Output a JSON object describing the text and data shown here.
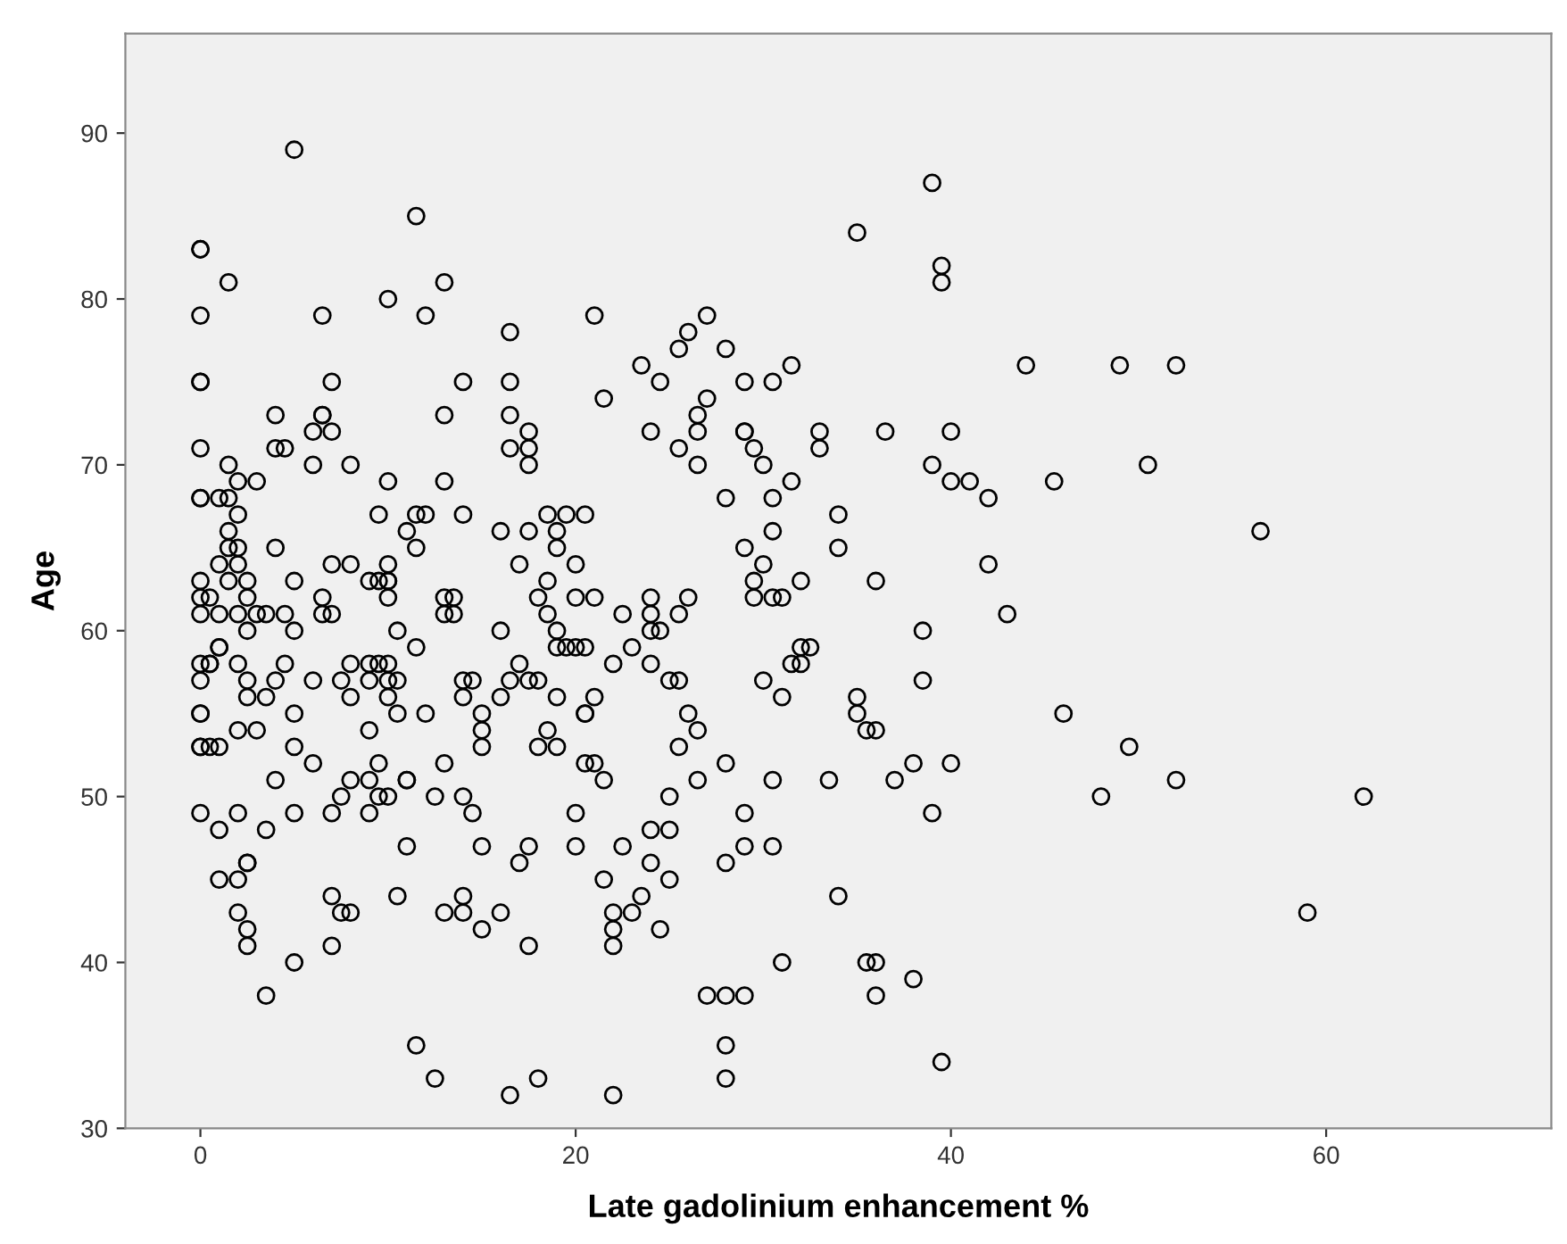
{
  "chart_data": {
    "type": "scatter",
    "xlabel": "Late gadolinium enhancement %",
    "ylabel": "Age",
    "xlim": [
      -4,
      72
    ],
    "ylim": [
      30,
      96
    ],
    "xticks": [
      0,
      20,
      40,
      60
    ],
    "yticks": [
      30,
      40,
      50,
      60,
      70,
      80,
      90
    ],
    "grid": false,
    "marker": "circle",
    "series": [
      {
        "color": "#000000",
        "x": [
          0,
          0,
          0,
          0,
          0,
          0,
          0,
          0,
          0,
          0,
          0,
          0,
          0,
          0,
          0,
          0,
          0,
          0,
          0.5,
          0.5,
          0.5,
          0.5,
          1,
          1,
          1,
          1,
          1,
          1,
          1,
          1,
          1.5,
          1.5,
          1.5,
          1.5,
          1.5,
          1.5,
          2,
          2,
          2,
          2,
          2,
          2,
          2,
          2,
          2,
          2,
          2.5,
          2.5,
          2.5,
          2.5,
          2.5,
          2.5,
          2.5,
          2.5,
          2.5,
          3,
          3,
          3,
          3.5,
          3.5,
          3.5,
          3.5,
          4,
          4,
          4,
          4,
          4,
          4.5,
          4.5,
          4.5,
          5,
          5,
          5,
          5,
          5,
          5,
          5,
          6,
          6,
          6,
          6,
          6.5,
          6.5,
          6.5,
          6.5,
          6.5,
          7,
          7,
          7,
          7,
          7,
          7,
          7,
          7.5,
          7.5,
          7.5,
          8,
          8,
          8,
          8,
          8,
          8,
          9,
          9,
          9,
          9,
          9,
          9,
          9.5,
          9.5,
          9.5,
          9.5,
          9.5,
          10,
          10,
          10,
          10,
          10,
          10,
          10,
          10,
          10,
          10,
          10.5,
          10.5,
          10.5,
          10.5,
          11,
          11,
          11,
          11,
          11.5,
          11.5,
          11.5,
          11.5,
          11.5,
          12,
          12,
          12,
          12.5,
          12.5,
          13,
          13,
          13,
          13,
          13,
          13,
          13,
          13.5,
          13.5,
          14,
          14,
          14,
          14,
          14,
          14,
          14,
          14.5,
          14.5,
          15,
          15,
          15,
          15,
          15,
          16,
          16,
          16,
          16,
          16.5,
          16.5,
          16.5,
          16.5,
          16.5,
          16.5,
          17,
          17,
          17,
          17.5,
          17.5,
          17.5,
          17.5,
          17.5,
          17.5,
          17.5,
          18,
          18,
          18,
          18,
          18.5,
          18.5,
          18.5,
          18.5,
          19,
          19,
          19,
          19,
          19,
          19,
          19.5,
          19.5,
          20,
          20,
          20,
          20,
          20,
          20.5,
          20.5,
          20.5,
          20.5,
          20.5,
          21,
          21,
          21,
          21,
          21.5,
          21.5,
          21.5,
          22,
          22,
          22,
          22,
          22,
          22.5,
          22.5,
          23,
          23,
          23.5,
          23.5,
          24,
          24,
          24,
          24,
          24,
          24,
          24,
          24.5,
          24.5,
          24.5,
          25,
          25,
          25,
          25,
          25.5,
          25.5,
          25.5,
          25.5,
          25.5,
          26,
          26,
          26,
          26.5,
          26.5,
          26.5,
          26.5,
          26.5,
          27,
          27,
          27,
          28,
          28,
          28,
          28,
          28,
          28,
          28,
          29,
          29,
          29,
          29,
          29,
          29,
          29,
          29.5,
          29.5,
          29.5,
          30,
          30,
          30,
          30.5,
          30.5,
          30.5,
          30.5,
          30.5,
          30.5,
          31,
          31,
          31,
          31.5,
          31.5,
          31.5,
          32,
          32,
          32,
          32.5,
          33,
          33,
          33.5,
          34,
          34,
          34,
          35,
          35,
          35,
          35.5,
          35.5,
          36,
          36,
          36,
          36,
          36.5,
          37,
          38,
          38,
          38.5,
          38.5,
          39,
          39,
          39,
          39.5,
          39.5,
          39.5,
          40,
          40,
          40,
          41,
          42,
          42,
          43,
          44,
          45.5,
          46,
          48,
          49,
          49.5,
          50.5,
          52,
          52,
          56.5,
          59,
          62
        ],
        "values": [
          83,
          83,
          79,
          75,
          75,
          71,
          68,
          68,
          63,
          62,
          61,
          58,
          57,
          55,
          55,
          53,
          53,
          49,
          62,
          58,
          53,
          58,
          68,
          64,
          61,
          59,
          59,
          53,
          48,
          45,
          81,
          70,
          68,
          66,
          65,
          63,
          69,
          67,
          65,
          64,
          61,
          58,
          54,
          49,
          45,
          43,
          63,
          62,
          60,
          57,
          56,
          46,
          46,
          42,
          41,
          69,
          61,
          54,
          61,
          56,
          48,
          38,
          73,
          71,
          65,
          57,
          51,
          71,
          61,
          58,
          89,
          63,
          60,
          55,
          53,
          49,
          40,
          72,
          70,
          57,
          52,
          79,
          73,
          73,
          62,
          61,
          75,
          72,
          64,
          61,
          49,
          44,
          41,
          57,
          50,
          43,
          70,
          64,
          58,
          56,
          51,
          43,
          63,
          58,
          57,
          49,
          51,
          54,
          67,
          63,
          58,
          50,
          52,
          80,
          69,
          64,
          63,
          63,
          62,
          58,
          57,
          56,
          50,
          60,
          57,
          55,
          44,
          66,
          51,
          47,
          51,
          85,
          67,
          65,
          59,
          35,
          79,
          67,
          55,
          50,
          33,
          81,
          73,
          69,
          62,
          61,
          52,
          43,
          62,
          61,
          75,
          67,
          57,
          56,
          50,
          43,
          44,
          49,
          57,
          55,
          54,
          53,
          47,
          42,
          66,
          60,
          56,
          43,
          78,
          75,
          73,
          71,
          57,
          32,
          64,
          58,
          46,
          72,
          71,
          70,
          66,
          57,
          47,
          41,
          62,
          57,
          53,
          33,
          67,
          63,
          61,
          54,
          66,
          65,
          60,
          59,
          56,
          53,
          67,
          59,
          64,
          62,
          59,
          49,
          47,
          67,
          59,
          55,
          55,
          52,
          79,
          62,
          56,
          52,
          74,
          51,
          45,
          58,
          43,
          42,
          41,
          32,
          61,
          47,
          59,
          43,
          76,
          44,
          72,
          62,
          61,
          60,
          58,
          48,
          46,
          75,
          60,
          42,
          57,
          50,
          48,
          45,
          77,
          71,
          61,
          57,
          53,
          78,
          62,
          55,
          73,
          72,
          70,
          54,
          51,
          79,
          74,
          38,
          77,
          68,
          52,
          46,
          38,
          35,
          33,
          72,
          72,
          75,
          65,
          49,
          47,
          38,
          71,
          63,
          62,
          70,
          64,
          57,
          75,
          68,
          66,
          62,
          51,
          47,
          62,
          56,
          40,
          76,
          69,
          58,
          63,
          59,
          58,
          59,
          72,
          71,
          51,
          67,
          65,
          44,
          84,
          56,
          55,
          54,
          40,
          63,
          54,
          40,
          38,
          72,
          51,
          39,
          52,
          60,
          57,
          87,
          70,
          49,
          82,
          81,
          34,
          72,
          69,
          52,
          69,
          68,
          64,
          61,
          76,
          69,
          55,
          50,
          76,
          53,
          70,
          76,
          51,
          66,
          43,
          50
        ]
      }
    ]
  }
}
